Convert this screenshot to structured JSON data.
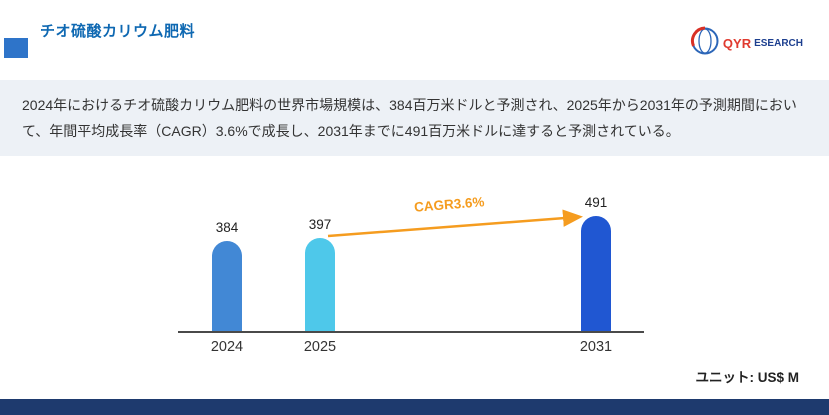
{
  "header": {
    "title": "チオ硫酸カリウム肥料",
    "logo": {
      "red_part": "QYR",
      "blue_part": "ESEARCH"
    }
  },
  "summary": {
    "text": "2024年におけるチオ硫酸カリウム肥料の世界市場規模は、384百万米ドルと予測され、2025年から2031年の予測期間において、年間平均成長率（CAGR）3.6%で成長し、2031年までに491百万米ドルに達すると予測されている。"
  },
  "chart_data": {
    "type": "bar",
    "title": "",
    "xlabel": "",
    "ylabel": "",
    "categories": [
      "2024",
      "2025",
      "2031"
    ],
    "values": [
      384,
      397,
      491
    ],
    "bar_colors": [
      "#4288d5",
      "#4ec8ea",
      "#2057d2"
    ],
    "annotation": "CAGR3.6%",
    "annotation_color": "#f59c1f",
    "unit_label": "ユニット: US$ M",
    "ylim": [
      0,
      500
    ],
    "grid": false,
    "legend": "none"
  },
  "colors": {
    "title_blue": "#0e68b2",
    "accent_square": "#2e74c9",
    "footer_navy": "#1e3a6e",
    "summary_bg": "#edf1f6"
  }
}
